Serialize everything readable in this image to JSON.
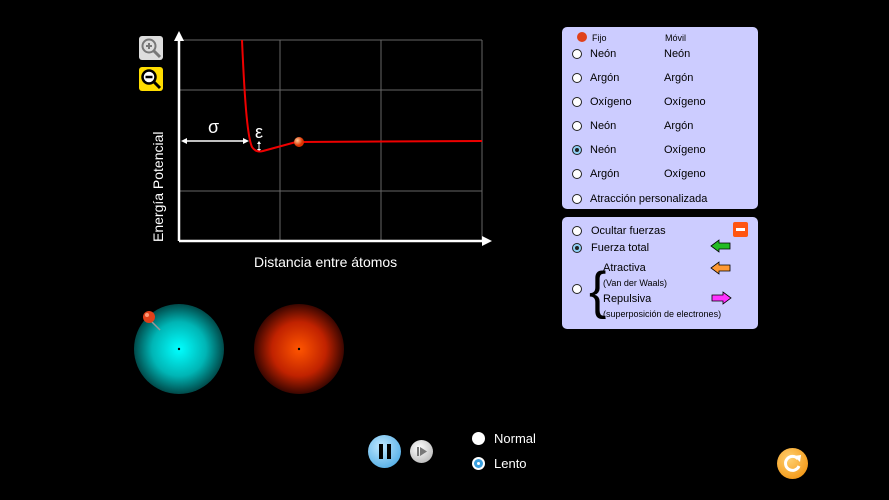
{
  "graph": {
    "ylabel": "Energía Potencial",
    "xlabel": "Distancia entre átomos",
    "sigma_label": "σ",
    "epsilon_label": "ε",
    "zoom_in": "zoom-in",
    "zoom_out": "zoom-out"
  },
  "atoms_panel": {
    "fixed_header": "Fijo",
    "mobile_header": "Móvil",
    "options": [
      {
        "fixed": "Neón",
        "mobile": "Neón",
        "selected": false
      },
      {
        "fixed": "Argón",
        "mobile": "Argón",
        "selected": false
      },
      {
        "fixed": "Oxígeno",
        "mobile": "Oxígeno",
        "selected": false
      },
      {
        "fixed": "Neón",
        "mobile": "Argón",
        "selected": false
      },
      {
        "fixed": "Neón",
        "mobile": "Oxígeno",
        "selected": true
      },
      {
        "fixed": "Argón",
        "mobile": "Oxígeno",
        "selected": false
      }
    ],
    "custom": "Atracción personalizada"
  },
  "forces_panel": {
    "hide": "Ocultar fuerzas",
    "total": "Fuerza total",
    "attractive": "Atractiva",
    "attractive_sub": "(Van der Waals)",
    "repulsive": "Repulsiva",
    "repulsive_sub": "(superposición de electrones)",
    "selected": "Fuerza total",
    "colors": {
      "total": "#22bb22",
      "attractive": "#ff9933",
      "repulsive": "#ff33ff"
    }
  },
  "playback": {
    "speed_options": [
      "Normal",
      "Lento"
    ],
    "selected_speed": "Lento"
  },
  "atoms": {
    "fixed_color": "#00cccc",
    "mobile_color": "#ff4400"
  }
}
